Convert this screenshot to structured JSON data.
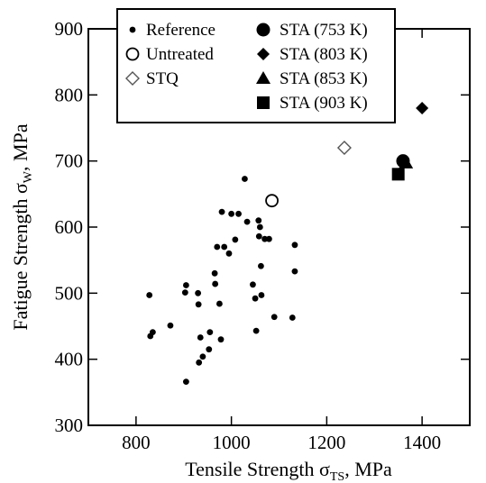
{
  "chart_data": {
    "type": "scatter",
    "xlabel": "Tensile Strength σ",
    "xlabel_sub": "TS",
    "xlabel_suffix": ", MPa",
    "ylabel": "Fatigue Strength σ",
    "ylabel_sub": "W",
    "ylabel_suffix": ", MPa",
    "xlim": [
      700,
      1500
    ],
    "ylim": [
      300,
      900
    ],
    "xticks": [
      800,
      1000,
      1200,
      1400
    ],
    "yticks": [
      300,
      400,
      500,
      600,
      700,
      800,
      900
    ],
    "grid": false,
    "legend_position": "top",
    "series": [
      {
        "name": "Reference",
        "marker": "small-dot",
        "points": [
          [
            828,
            497
          ],
          [
            830,
            435
          ],
          [
            835,
            441
          ],
          [
            872,
            451
          ],
          [
            903,
            501
          ],
          [
            905,
            512
          ],
          [
            905,
            366
          ],
          [
            930,
            500
          ],
          [
            931,
            483
          ],
          [
            932,
            395
          ],
          [
            935,
            433
          ],
          [
            940,
            404
          ],
          [
            953,
            415
          ],
          [
            955,
            441
          ],
          [
            965,
            530
          ],
          [
            966,
            514
          ],
          [
            970,
            570
          ],
          [
            975,
            484
          ],
          [
            978,
            430
          ],
          [
            980,
            623
          ],
          [
            985,
            570
          ],
          [
            995,
            560
          ],
          [
            1000,
            620
          ],
          [
            1008,
            581
          ],
          [
            1015,
            620
          ],
          [
            1028,
            673
          ],
          [
            1033,
            608
          ],
          [
            1045,
            513
          ],
          [
            1050,
            492
          ],
          [
            1052,
            443
          ],
          [
            1057,
            610
          ],
          [
            1058,
            586
          ],
          [
            1060,
            600
          ],
          [
            1062,
            541
          ],
          [
            1063,
            497
          ],
          [
            1070,
            582
          ],
          [
            1079,
            582
          ],
          [
            1090,
            464
          ],
          [
            1128,
            463
          ],
          [
            1133,
            573
          ],
          [
            1133,
            533
          ]
        ]
      },
      {
        "name": "Untreated",
        "marker": "open-circle",
        "points": [
          [
            1085,
            640
          ]
        ]
      },
      {
        "name": "STQ",
        "marker": "open-diamond",
        "points": [
          [
            1237,
            720
          ]
        ]
      },
      {
        "name": "STA (753 K)",
        "marker": "filled-circle",
        "points": [
          [
            1360,
            700
          ]
        ]
      },
      {
        "name": "STA (803 K)",
        "marker": "filled-diamond",
        "points": [
          [
            1400,
            780
          ]
        ]
      },
      {
        "name": "STA (853 K)",
        "marker": "filled-triangle",
        "points": [
          [
            1366,
            697
          ]
        ]
      },
      {
        "name": "STA (903 K)",
        "marker": "filled-square",
        "points": [
          [
            1350,
            680
          ]
        ]
      }
    ]
  }
}
